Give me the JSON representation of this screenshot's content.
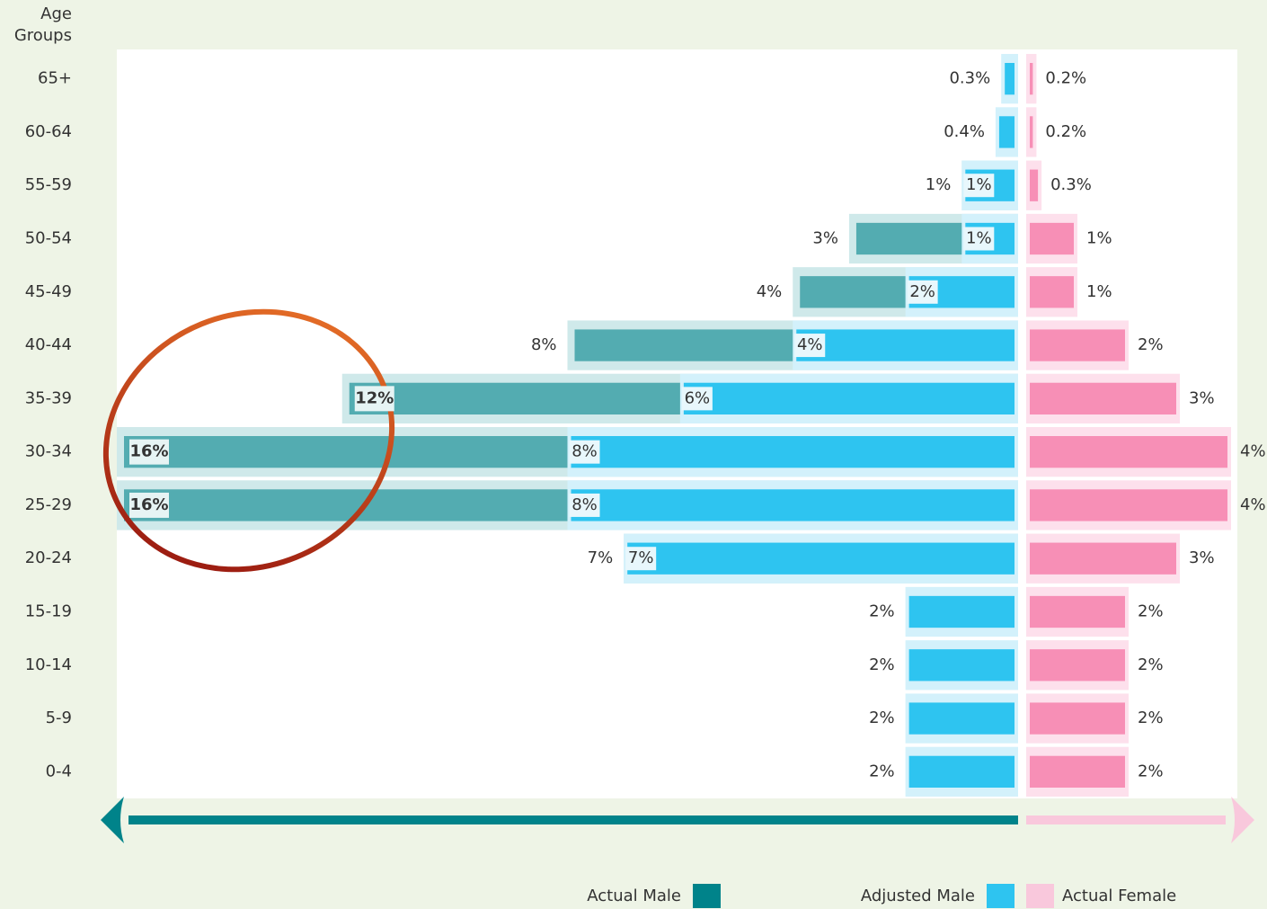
{
  "chart_data": {
    "type": "pyramid",
    "y_axis_label": "Age Groups",
    "categories": [
      "65+",
      "60-64",
      "55-59",
      "50-54",
      "45-49",
      "40-44",
      "35-39",
      "30-34",
      "25-29",
      "20-24",
      "15-19",
      "10-14",
      "5-9",
      "0-4"
    ],
    "series": [
      {
        "name": "Actual Male",
        "color": "#00838a",
        "side": "left",
        "values": [
          null,
          null,
          1,
          3,
          4,
          8,
          12,
          16,
          16,
          7,
          null,
          null,
          null,
          null
        ],
        "value_labels": [
          null,
          null,
          "1%",
          "3%",
          "4%",
          "8%",
          "12%",
          "16%",
          "16%",
          "7%",
          null,
          null,
          null,
          null
        ]
      },
      {
        "name": "Adjusted Male",
        "color": "#2ec4f0",
        "side": "left",
        "values": [
          0.3,
          0.4,
          1,
          1,
          2,
          4,
          6,
          8,
          8,
          7,
          2,
          2,
          2,
          2
        ],
        "value_labels": [
          "0.3%",
          "0.4%",
          "1%",
          "1%",
          "2%",
          "4%",
          "6%",
          "8%",
          "8%",
          "7%",
          "2%",
          "2%",
          "2%",
          "2%"
        ]
      },
      {
        "name": "Actual Female",
        "color": "#f9c8dc",
        "side": "right",
        "values": [
          0.2,
          0.2,
          0.3,
          1,
          1,
          2,
          3,
          4,
          4,
          3,
          2,
          2,
          2,
          2
        ],
        "value_labels": [
          "0.2%",
          "0.2%",
          "0.3%",
          "1%",
          "1%",
          "2%",
          "3%",
          "4%",
          "4%",
          "3%",
          "2%",
          "2%",
          "2%",
          "2%"
        ]
      }
    ]
  }
}
